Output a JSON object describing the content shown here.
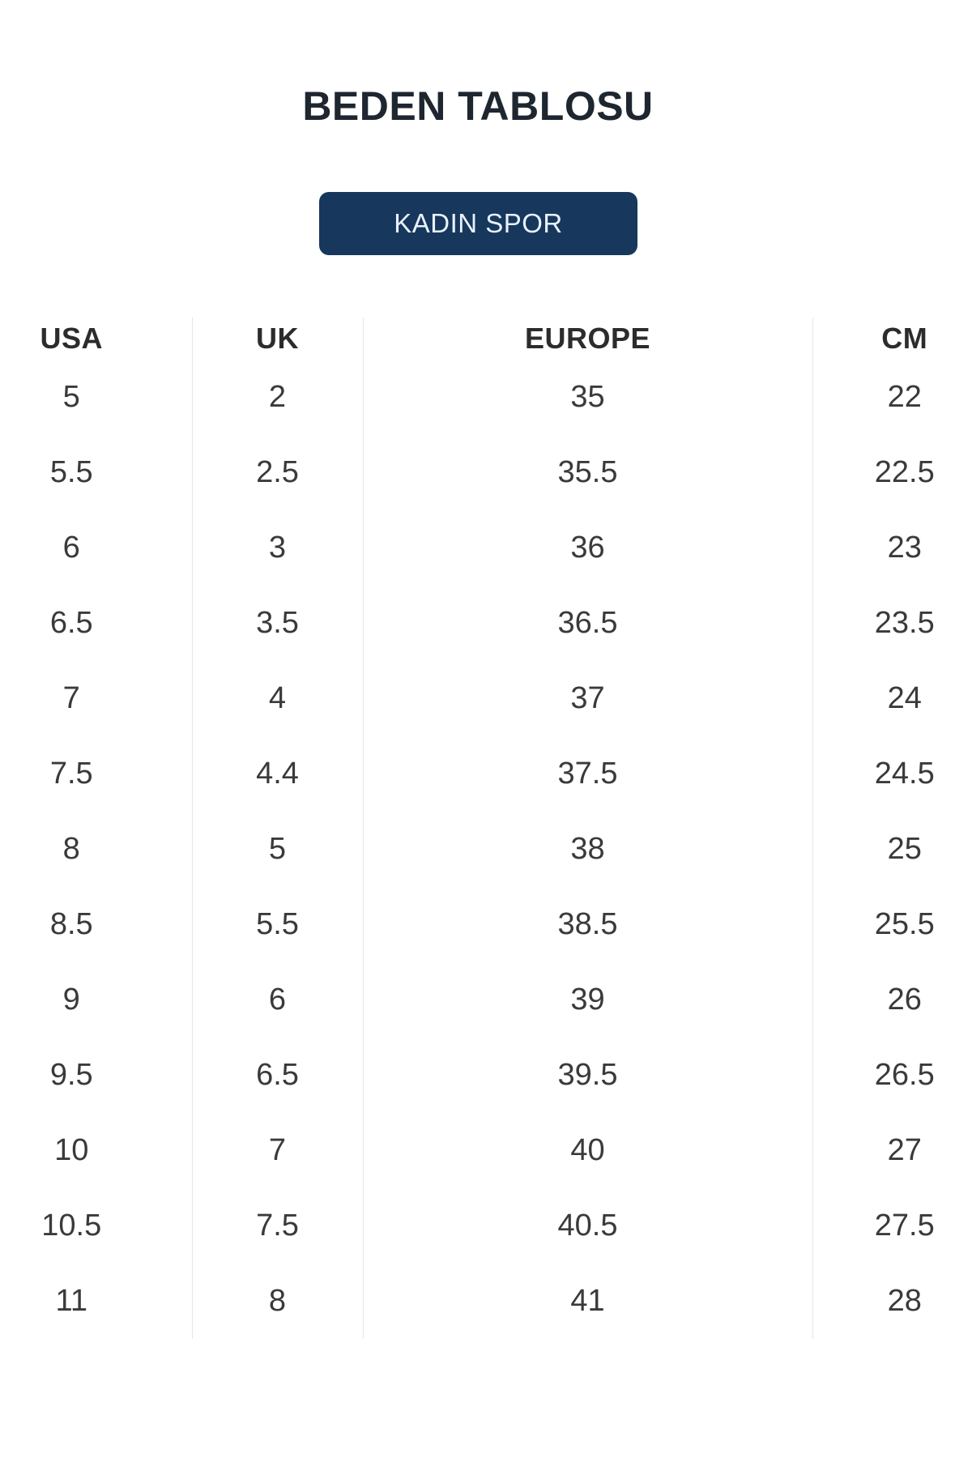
{
  "page": {
    "title": "BEDEN TABLOSU"
  },
  "category_button": {
    "label": "KADIN SPOR",
    "bg_color": "#17375c",
    "text_color": "#e9f1fb"
  },
  "size_table": {
    "columns": [
      "USA",
      "UK",
      "EUROPE",
      "CM"
    ],
    "rows": [
      [
        "5",
        "2",
        "35",
        "22"
      ],
      [
        "5.5",
        "2.5",
        "35.5",
        "22.5"
      ],
      [
        "6",
        "3",
        "36",
        "23"
      ],
      [
        "6.5",
        "3.5",
        "36.5",
        "23.5"
      ],
      [
        "7",
        "4",
        "37",
        "24"
      ],
      [
        "7.5",
        "4.4",
        "37.5",
        "24.5"
      ],
      [
        "8",
        "5",
        "38",
        "25"
      ],
      [
        "8.5",
        "5.5",
        "38.5",
        "25.5"
      ],
      [
        "9",
        "6",
        "39",
        "26"
      ],
      [
        "9.5",
        "6.5",
        "39.5",
        "26.5"
      ],
      [
        "10",
        "7",
        "40",
        "27"
      ],
      [
        "10.5",
        "7.5",
        "40.5",
        "27.5"
      ],
      [
        "11",
        "8",
        "41",
        "28"
      ]
    ]
  },
  "colors": {
    "title_text": "#1e2630",
    "header_text": "#2c2c2c",
    "cell_text": "#3a3a3a",
    "divider": "#e7e7e7",
    "background": "#ffffff"
  }
}
